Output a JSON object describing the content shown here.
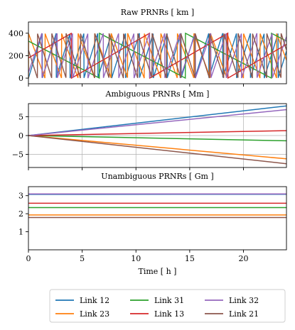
{
  "colors": {
    "Link 12": "#1f77b4",
    "Link 23": "#ff7f0e",
    "Link 31": "#2ca02c",
    "Link 13": "#d62728",
    "Link 32": "#9467bd",
    "Link 21": "#8c564b"
  },
  "chart_data": [
    {
      "type": "line",
      "title": "Raw PRNRs [ km ]",
      "xlim": [
        0,
        24
      ],
      "ylim": [
        -50,
        500
      ],
      "yticks": [
        0,
        200,
        400
      ],
      "grid": false,
      "wrap_km": 400,
      "series": [
        {
          "name": "Link 12",
          "start": 0,
          "slope": 310
        },
        {
          "name": "Link 23",
          "start": 400,
          "slope": -260
        },
        {
          "name": "Link 31",
          "start": 330,
          "slope": -50
        },
        {
          "name": "Link 13",
          "start": 180,
          "slope": 55
        },
        {
          "name": "Link 32",
          "start": 50,
          "slope": 280
        },
        {
          "name": "Link 21",
          "start": 250,
          "slope": -300
        }
      ]
    },
    {
      "type": "line",
      "title": "Ambiguous PRNRs [ Mm ]",
      "xlim": [
        0,
        24
      ],
      "ylim": [
        -8.5,
        8.5
      ],
      "yticks": [
        -5,
        0,
        5
      ],
      "grid": true,
      "series": [
        {
          "name": "Link 12",
          "x": [
            0,
            24
          ],
          "y": [
            0,
            7.9
          ]
        },
        {
          "name": "Link 23",
          "x": [
            0,
            24
          ],
          "y": [
            0,
            -6.2
          ]
        },
        {
          "name": "Link 31",
          "x": [
            0,
            24
          ],
          "y": [
            0,
            -1.4
          ]
        },
        {
          "name": "Link 13",
          "x": [
            0,
            24
          ],
          "y": [
            0,
            1.3
          ]
        },
        {
          "name": "Link 32",
          "x": [
            0,
            24
          ],
          "y": [
            0,
            6.9
          ]
        },
        {
          "name": "Link 21",
          "x": [
            0,
            24
          ],
          "y": [
            0,
            -7.5
          ]
        }
      ]
    },
    {
      "type": "line",
      "title": "Unambiguous PRNRs [ Gm ]",
      "xlim": [
        0,
        24
      ],
      "ylim": [
        0,
        3.5
      ],
      "yticks": [
        1,
        2,
        3
      ],
      "xticks": [
        0,
        5,
        10,
        15,
        20
      ],
      "xlabel": "Time [ h ]",
      "grid": false,
      "series": [
        {
          "name": "Link 12",
          "x": [
            0,
            24
          ],
          "y": [
            3.07,
            3.08
          ]
        },
        {
          "name": "Link 23",
          "x": [
            0,
            24
          ],
          "y": [
            1.93,
            1.93
          ]
        },
        {
          "name": "Link 31",
          "x": [
            0,
            24
          ],
          "y": [
            2.34,
            2.34
          ]
        },
        {
          "name": "Link 13",
          "x": [
            0,
            24
          ],
          "y": [
            2.58,
            2.58
          ]
        },
        {
          "name": "Link 32",
          "x": [
            0,
            24
          ],
          "y": [
            3.1,
            3.1
          ]
        },
        {
          "name": "Link 21",
          "x": [
            0,
            24
          ],
          "y": [
            1.79,
            1.79
          ]
        }
      ]
    }
  ],
  "legend": {
    "columns": [
      [
        "Link 12",
        "Link 23"
      ],
      [
        "Link 31",
        "Link 13"
      ],
      [
        "Link 32",
        "Link 21"
      ]
    ]
  }
}
